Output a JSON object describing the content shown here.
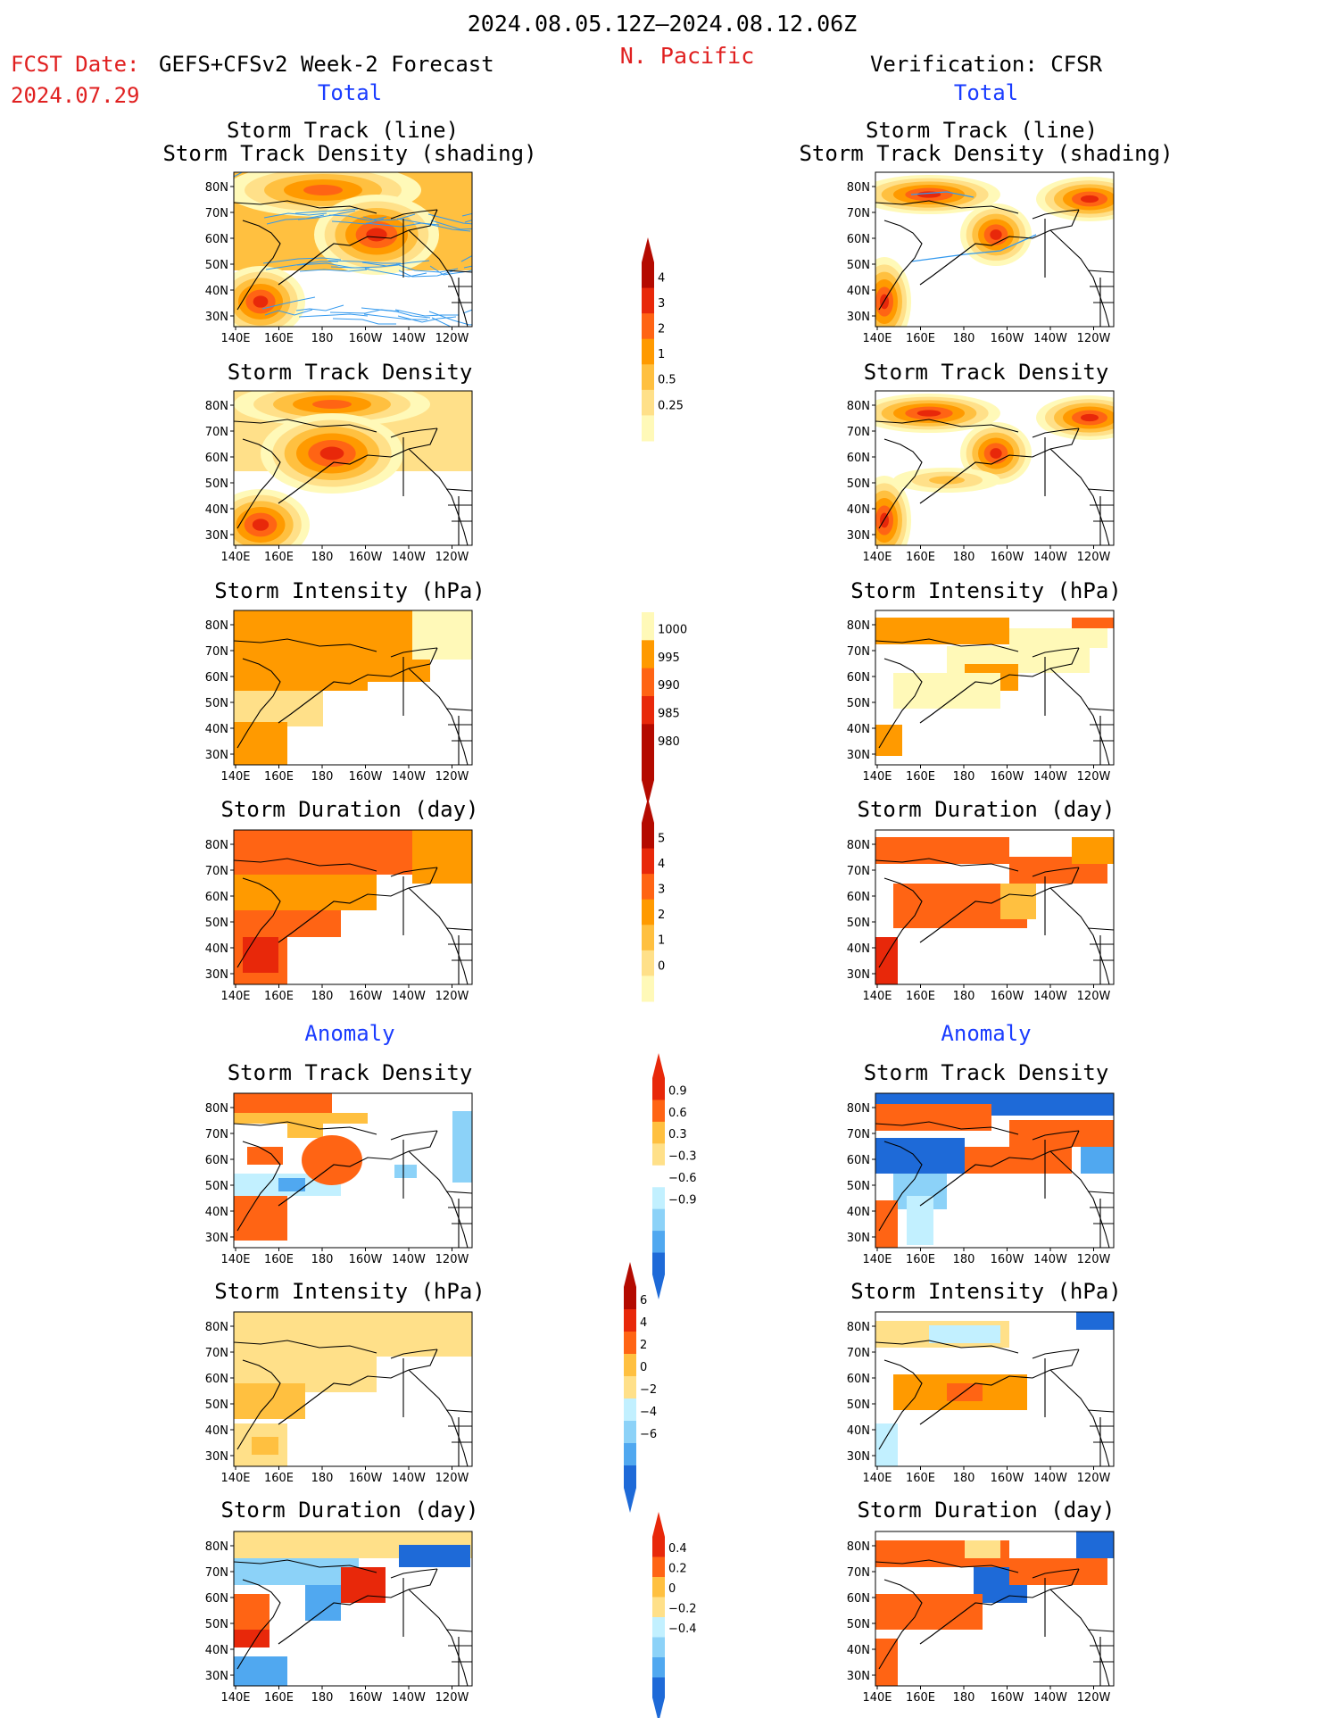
{
  "header": {
    "period": "2024.08.05.12Z–2024.08.12.06Z",
    "region": "N. Pacific",
    "fcst_label": "FCST Date:",
    "fcst_model": "GEFS+CFSv2 Week-2 Forecast",
    "fcst_date": "2024.07.29",
    "verif": "Verification: CFSR"
  },
  "sections": {
    "total": "Total",
    "anomaly": "Anomaly"
  },
  "panel_titles": {
    "line": "Storm Track (line)",
    "shading": "Storm Track Density (shading)",
    "density": "Storm Track Density",
    "intensity": "Storm Intensity (hPa)",
    "duration": "Storm Duration (day)"
  },
  "axes": {
    "lat_ticks": [
      "80N",
      "70N",
      "60N",
      "50N",
      "40N",
      "30N"
    ],
    "lon_ticks": [
      "140E",
      "160E",
      "180",
      "160W",
      "140W",
      "120W"
    ]
  },
  "colorbars": {
    "density": [
      "4",
      "3",
      "2",
      "1",
      "0.5",
      "0.25"
    ],
    "intensity": [
      "1000",
      "995",
      "990",
      "985",
      "980"
    ],
    "duration": [
      "5",
      "4",
      "3",
      "2",
      "1",
      "0"
    ],
    "density_anom": [
      "0.9",
      "0.6",
      "0.3",
      "−0.3",
      "−0.6",
      "−0.9"
    ],
    "intensity_anom": [
      "6",
      "4",
      "2",
      "0",
      "−2",
      "−4",
      "−6"
    ],
    "duration_anom": [
      "0.4",
      "0.2",
      "0",
      "−0.2",
      "−0.4"
    ]
  },
  "colors": {
    "title_red": "#e02020",
    "title_blue": "#1a3cff",
    "track_line": "#3399ee",
    "warm": [
      "#fff9b8",
      "#ffe089",
      "#ffc040",
      "#ff9a00",
      "#ff6414",
      "#e8280a",
      "#b40a00"
    ],
    "cool": [
      "#c2f0ff",
      "#8cd2f8",
      "#50a8f0",
      "#1e6ad8"
    ]
  }
}
